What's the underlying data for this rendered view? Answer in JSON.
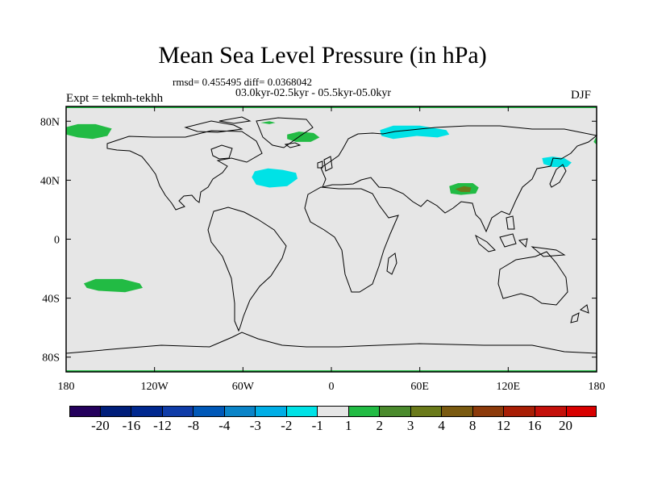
{
  "title": "Mean Sea Level Pressure (in hPa)",
  "stats": "rmsd= 0.455495 diff= 0.0368042",
  "period": "03.0kyr-02.5kyr - 05.5kyr-05.0kyr",
  "experiment": "Expt = tekmh-tekhh",
  "season": "DJF",
  "map": {
    "projection": "cylindrical-equidistant",
    "lon_range": [
      -180,
      180
    ],
    "lat_range": [
      -90,
      90
    ],
    "y_tick_labels": [
      "80N",
      "40N",
      "0",
      "40S",
      "80S"
    ],
    "y_tick_values": [
      80,
      40,
      0,
      -40,
      -80
    ],
    "x_tick_labels": [
      "180",
      "120W",
      "60W",
      "0",
      "60E",
      "120E",
      "180"
    ],
    "x_tick_values": [
      -180,
      -120,
      -60,
      0,
      60,
      120,
      180
    ],
    "background_color": "#e6e6e6",
    "anomaly_regions": [
      {
        "name": "north-pacific-west-positive",
        "class": "1 to 2",
        "color": "#22bb44",
        "points": [
          [
            -180,
            76
          ],
          [
            -172,
            78
          ],
          [
            -160,
            78
          ],
          [
            -149,
            75
          ],
          [
            -152,
            70
          ],
          [
            -162,
            68
          ],
          [
            -172,
            69
          ],
          [
            -180,
            71
          ]
        ]
      },
      {
        "name": "north-pacific-east-positive",
        "class": "1 to 2",
        "color": "#22bb44",
        "points": [
          [
            178,
            66
          ],
          [
            180,
            70
          ],
          [
            180,
            64
          ]
        ]
      },
      {
        "name": "greenland-sea-positive",
        "class": "1 to 2",
        "color": "#22bb44",
        "points": [
          [
            -30,
            71
          ],
          [
            -22,
            73
          ],
          [
            -12,
            72
          ],
          [
            -8,
            69
          ],
          [
            -14,
            66
          ],
          [
            -24,
            66
          ],
          [
            -30,
            68
          ]
        ]
      },
      {
        "name": "canadian-arctic-positive",
        "class": "1 to 2",
        "color": "#22bb44",
        "points": [
          [
            -48,
            79
          ],
          [
            -42,
            80
          ],
          [
            -38,
            79
          ],
          [
            -42,
            78
          ]
        ]
      },
      {
        "name": "north-atlantic-negative",
        "class": "-2 to -1",
        "color": "#00e2e6",
        "points": [
          [
            -52,
            46
          ],
          [
            -43,
            48
          ],
          [
            -33,
            47
          ],
          [
            -24,
            45
          ],
          [
            -23,
            41
          ],
          [
            -30,
            36
          ],
          [
            -42,
            35
          ],
          [
            -51,
            37
          ],
          [
            -54,
            42
          ]
        ]
      },
      {
        "name": "barents-kara-negative",
        "class": "-2 to -1",
        "color": "#00e2e6",
        "points": [
          [
            33,
            74
          ],
          [
            42,
            77
          ],
          [
            60,
            77
          ],
          [
            78,
            74
          ],
          [
            80,
            71
          ],
          [
            72,
            69
          ],
          [
            58,
            70
          ],
          [
            42,
            68
          ],
          [
            34,
            70
          ]
        ]
      },
      {
        "name": "japan-negative",
        "class": "-2 to -1",
        "color": "#00e2e6",
        "points": [
          [
            143,
            55
          ],
          [
            150,
            56
          ],
          [
            158,
            55
          ],
          [
            163,
            52
          ],
          [
            160,
            49
          ],
          [
            150,
            49
          ],
          [
            144,
            51
          ]
        ]
      },
      {
        "name": "tibet-positive",
        "class": "1 to 2",
        "color": "#22bb44",
        "points": [
          [
            80,
            36
          ],
          [
            86,
            38
          ],
          [
            96,
            38
          ],
          [
            100,
            35
          ],
          [
            98,
            31
          ],
          [
            88,
            30
          ],
          [
            81,
            31
          ]
        ]
      },
      {
        "name": "tibet-core-positive",
        "class": "3 to 4",
        "color": "#6a7a1a",
        "points": [
          [
            84,
            34
          ],
          [
            90,
            36
          ],
          [
            95,
            35
          ],
          [
            94,
            32
          ],
          [
            88,
            32
          ]
        ]
      },
      {
        "name": "south-pacific-positive",
        "class": "1 to 2",
        "color": "#22bb44",
        "points": [
          [
            -168,
            -30
          ],
          [
            -160,
            -27
          ],
          [
            -142,
            -27
          ],
          [
            -130,
            -30
          ],
          [
            -128,
            -33
          ],
          [
            -140,
            -36
          ],
          [
            -158,
            -35
          ],
          [
            -166,
            -33
          ]
        ]
      }
    ]
  },
  "colorbar": {
    "labels": [
      "-20",
      "-16",
      "-12",
      "-8",
      "-4",
      "-3",
      "-2",
      "-1",
      "1",
      "2",
      "3",
      "4",
      "8",
      "12",
      "16",
      "20"
    ],
    "colors": [
      "#24005c",
      "#001e7a",
      "#00288f",
      "#0f3ca8",
      "#0058b8",
      "#0a84c8",
      "#00aee6",
      "#00e2e6",
      "#e6e6e6",
      "#22bb44",
      "#4a8a2c",
      "#6a7a1a",
      "#7a5a10",
      "#8c3a0a",
      "#a81e05",
      "#c4100a",
      "#d80000"
    ]
  }
}
